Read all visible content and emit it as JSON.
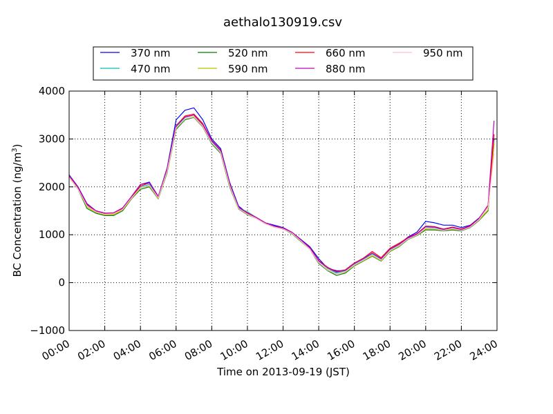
{
  "chart_data": {
    "type": "line",
    "title": "aethalo130919.csv",
    "xlabel": "Time on 2013-09-19 (JST)",
    "ylabel_main": "BC Concentration (ng/m",
    "ylabel_sup": "3",
    "ylabel_close": ")",
    "xlim": [
      "00:00",
      "24:00"
    ],
    "ylim": [
      -1000,
      4000
    ],
    "xtick_labels": [
      "00:00",
      "02:00",
      "04:00",
      "06:00",
      "08:00",
      "10:00",
      "12:00",
      "14:00",
      "16:00",
      "18:00",
      "20:00",
      "22:00",
      "24:00"
    ],
    "ytick_values": [
      -1000,
      0,
      1000,
      2000,
      3000,
      4000
    ],
    "ytick_labels": [
      "−1000",
      "0",
      "1000",
      "2000",
      "3000",
      "4000"
    ],
    "grid": true,
    "legend_placement": "top-center",
    "legend_columns": 4,
    "x": [
      "00:00",
      "00:30",
      "01:00",
      "01:30",
      "02:00",
      "02:30",
      "03:00",
      "03:30",
      "04:00",
      "04:30",
      "05:00",
      "05:30",
      "06:00",
      "06:30",
      "07:00",
      "07:30",
      "08:00",
      "08:30",
      "09:00",
      "09:30",
      "10:00",
      "10:30",
      "11:00",
      "11:30",
      "12:00",
      "12:30",
      "13:00",
      "13:30",
      "14:00",
      "14:30",
      "15:00",
      "15:30",
      "16:00",
      "16:30",
      "17:00",
      "17:30",
      "18:00",
      "18:30",
      "19:00",
      "19:30",
      "20:00",
      "20:30",
      "21:00",
      "21:30",
      "22:00",
      "22:30",
      "23:00",
      "23:30",
      "23:50"
    ],
    "series": [
      {
        "name": "370 nm",
        "color": "#0000ff",
        "values": [
          2250,
          2000,
          1650,
          1500,
          1450,
          1450,
          1550,
          1800,
          2050,
          2100,
          1800,
          2400,
          3400,
          3600,
          3650,
          3400,
          3000,
          2800,
          2100,
          1600,
          1450,
          1350,
          1250,
          1200,
          1150,
          1050,
          900,
          750,
          500,
          300,
          250,
          250,
          400,
          500,
          600,
          500,
          700,
          800,
          950,
          1050,
          1280,
          1250,
          1200,
          1200,
          1150,
          1200,
          1350,
          1600,
          3000
        ]
      },
      {
        "name": "470 nm",
        "color": "#00bfbf",
        "values": [
          2220,
          1980,
          1620,
          1480,
          1430,
          1440,
          1540,
          1780,
          2000,
          2050,
          1780,
          2350,
          3250,
          3450,
          3500,
          3300,
          2950,
          2750,
          2050,
          1560,
          1480,
          1360,
          1250,
          1180,
          1130,
          1040,
          880,
          720,
          450,
          300,
          200,
          250,
          380,
          480,
          600,
          480,
          680,
          780,
          920,
          1000,
          1150,
          1150,
          1100,
          1150,
          1100,
          1180,
          1320,
          1580,
          2950
        ]
      },
      {
        "name": "520 nm",
        "color": "#008000",
        "values": [
          2200,
          1950,
          1550,
          1450,
          1400,
          1400,
          1500,
          1750,
          1950,
          2000,
          1750,
          2300,
          3200,
          3400,
          3450,
          3250,
          2900,
          2700,
          2000,
          1540,
          1420,
          1340,
          1230,
          1160,
          1120,
          1020,
          860,
          700,
          400,
          250,
          150,
          200,
          350,
          450,
          550,
          450,
          650,
          750,
          900,
          980,
          1100,
          1100,
          1080,
          1100,
          1080,
          1150,
          1300,
          1500,
          2900
        ]
      },
      {
        "name": "590 nm",
        "color": "#bfbf00",
        "values": [
          2210,
          1960,
          1580,
          1470,
          1420,
          1420,
          1520,
          1760,
          1980,
          2020,
          1760,
          2320,
          3220,
          3420,
          3470,
          3270,
          2920,
          2720,
          2020,
          1550,
          1430,
          1350,
          1240,
          1170,
          1130,
          1030,
          870,
          710,
          420,
          270,
          180,
          220,
          360,
          460,
          560,
          460,
          660,
          760,
          910,
          990,
          1120,
          1120,
          1090,
          1120,
          1090,
          1160,
          1310,
          1520,
          2920
        ]
      },
      {
        "name": "660 nm",
        "color": "#ff0000",
        "values": [
          2230,
          1990,
          1630,
          1490,
          1440,
          1450,
          1550,
          1790,
          2020,
          2080,
          1790,
          2380,
          3280,
          3480,
          3520,
          3320,
          2970,
          2770,
          2070,
          1570,
          1460,
          1360,
          1250,
          1180,
          1140,
          1050,
          890,
          730,
          460,
          320,
          230,
          270,
          410,
          510,
          650,
          520,
          720,
          820,
          940,
          1020,
          1180,
          1170,
          1120,
          1160,
          1120,
          1190,
          1340,
          1600,
          3100
        ]
      },
      {
        "name": "880 nm",
        "color": "#bf00bf",
        "values": [
          2240,
          1990,
          1640,
          1500,
          1450,
          1460,
          1560,
          1800,
          2050,
          2080,
          1800,
          2370,
          3270,
          3460,
          3500,
          3300,
          2960,
          2760,
          2060,
          1570,
          1450,
          1360,
          1250,
          1180,
          1140,
          1050,
          890,
          720,
          450,
          310,
          220,
          260,
          400,
          500,
          620,
          500,
          700,
          800,
          930,
          1010,
          1170,
          1160,
          1110,
          1150,
          1110,
          1180,
          1340,
          1620,
          3380
        ]
      },
      {
        "name": "950 nm",
        "color": "#ffc0cb",
        "values": [
          2200,
          1950,
          1600,
          1480,
          1430,
          1440,
          1530,
          1770,
          1980,
          2030,
          1770,
          2330,
          3230,
          3420,
          3460,
          3260,
          2920,
          2720,
          2030,
          1550,
          1430,
          1340,
          1230,
          1160,
          1120,
          1030,
          870,
          700,
          420,
          260,
          180,
          230,
          370,
          470,
          580,
          470,
          670,
          770,
          910,
          990,
          1140,
          1130,
          1090,
          1130,
          1090,
          1160,
          1320,
          1580,
          2700
        ]
      }
    ]
  }
}
